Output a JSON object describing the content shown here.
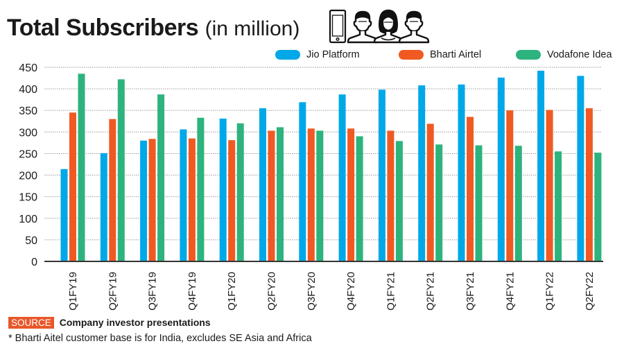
{
  "header": {
    "title_main": "Total Subscribers",
    "title_sub": "(in million)",
    "icons": [
      "smartphone-icon",
      "man-icon",
      "woman-icon",
      "man-icon"
    ]
  },
  "chart_data": {
    "type": "bar",
    "title": "Total Subscribers (in million)",
    "xlabel": "",
    "ylabel": "",
    "ylim": [
      0,
      450
    ],
    "yticks": [
      0,
      50,
      100,
      150,
      200,
      250,
      300,
      350,
      400,
      450
    ],
    "grid": true,
    "legend_position": "top-right",
    "categories": [
      "Q1FY19",
      "Q2FY19",
      "Q3FY19",
      "Q4FY19",
      "Q1FY20",
      "Q2FY20",
      "Q3FY20",
      "Q4FY20",
      "Q1FY21",
      "Q2FY21",
      "Q3FY21",
      "Q4FY21",
      "Q1FY22",
      "Q2FY22"
    ],
    "series": [
      {
        "name": "Jio Platform",
        "color": "#00a8e8",
        "values": [
          214,
          251,
          280,
          306,
          331,
          355,
          369,
          387,
          398,
          408,
          410,
          426,
          442,
          430
        ]
      },
      {
        "name": "Bharti Airtel",
        "color": "#f05a22",
        "values": [
          345,
          330,
          284,
          285,
          281,
          303,
          308,
          308,
          303,
          319,
          335,
          350,
          351,
          355
        ]
      },
      {
        "name": "Vodafone Idea",
        "color": "#2db37d",
        "values": [
          435,
          422,
          387,
          333,
          320,
          311,
          303,
          290,
          279,
          271,
          269,
          268,
          255,
          252
        ]
      }
    ]
  },
  "footer": {
    "source_label": "SOURCE",
    "source_text": "Company investor presentations",
    "footnote": "* Bharti Aitel customer base is for India, excludes SE Asia and Africa"
  },
  "colors": {
    "source_badge": "#e8572a",
    "gridline": "#9a9a9a",
    "axis": "#333333"
  }
}
